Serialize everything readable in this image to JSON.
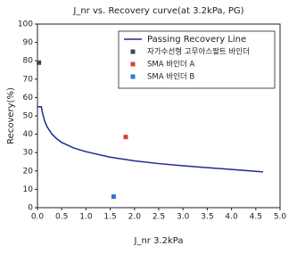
{
  "chart_data": {
    "type": "line",
    "title": "J_nr vs. Recovery curve(at 3.2kPa, PG)",
    "x_label": "J_nr 3.2kPa",
    "y_label": "Recovery(%)",
    "xlim": [
      0,
      5
    ],
    "xticks": [
      {
        "value": 0,
        "label": "0.0"
      },
      0.5,
      {
        "value": 1,
        "label": "1.0"
      },
      1.5,
      {
        "value": 2,
        "label": "2.0"
      },
      2.5,
      {
        "value": 3,
        "label": "3.0"
      },
      3.5,
      {
        "value": 4,
        "label": "4.0"
      },
      4.5,
      {
        "value": 5,
        "label": "5.0"
      }
    ],
    "ylim": [
      0,
      100
    ],
    "yticks": [
      0,
      10,
      20,
      30,
      40,
      50,
      60,
      70,
      80,
      90,
      100
    ],
    "legend": "upper right",
    "series": [
      {
        "name": "Passing Recovery Line",
        "type": "line",
        "color": "#1f2a8c",
        "x": [
          0,
          0.08,
          0.1,
          0.15,
          0.2,
          0.3,
          0.4,
          0.5,
          0.75,
          1.0,
          1.5,
          2.0,
          2.5,
          3.0,
          3.5,
          4.0,
          4.65
        ],
        "y": [
          55,
          55,
          52,
          47,
          44,
          40,
          37.5,
          35.5,
          32.5,
          30.5,
          27.5,
          25.5,
          24,
          22.8,
          21.8,
          20.8,
          19.5
        ]
      },
      {
        "name": "자가수선형 고무아스팔트 바인더",
        "type": "scatter",
        "color": "#444444",
        "x": [
          0.03
        ],
        "y": [
          79
        ]
      },
      {
        "name": "SMA 바인더 A",
        "type": "scatter",
        "color": "#e03c3c",
        "x": [
          1.82
        ],
        "y": [
          38.5
        ]
      },
      {
        "name": "SMA 바인더 B",
        "type": "scatter",
        "color": "#2a78d0",
        "x": [
          1.57
        ],
        "y": [
          6
        ]
      }
    ]
  }
}
